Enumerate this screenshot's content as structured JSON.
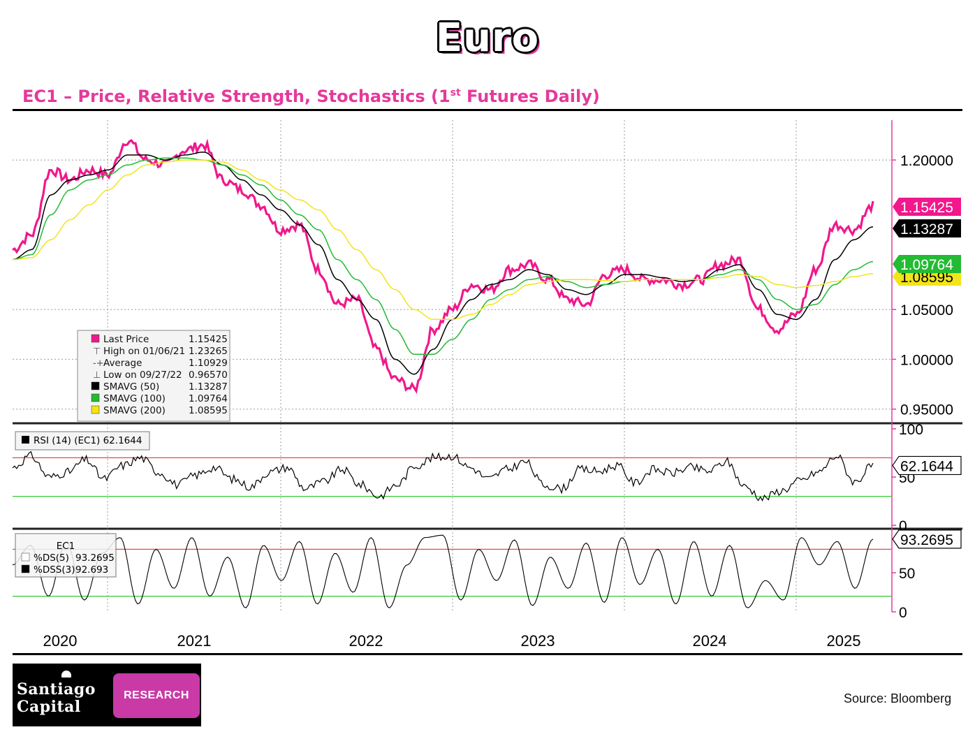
{
  "header": {
    "title": "Euro",
    "subtitle": "EC1 – Price, Relative Strength, Stochastics (1",
    "subtitle_sup": "st",
    "subtitle_end": " Futures Daily)"
  },
  "footer": {
    "source": "Source:  Bloomberg",
    "logo_line1": "Santiago",
    "logo_line2": "Capital",
    "logo_badge": "RESEARCH"
  },
  "colors": {
    "price": "#f0188c",
    "sma50": "#000000",
    "sma100": "#22bb33",
    "sma200": "#f2e41a",
    "overbought": "#e04a4a",
    "oversold": "#33cc33",
    "axis": "#e6399b"
  },
  "chart_data": [
    {
      "type": "line",
      "panel": "price",
      "years": [
        "2020",
        "2021",
        "2022",
        "2023",
        "2024",
        "2025"
      ],
      "x_dates": [
        "2019-11",
        "2020-01",
        "2020-03",
        "2020-05",
        "2020-06",
        "2020-08",
        "2020-10",
        "2020-12",
        "2021-01",
        "2021-03",
        "2021-05",
        "2021-06",
        "2021-08",
        "2021-10",
        "2021-12",
        "2022-02",
        "2022-03",
        "2022-05",
        "2022-07",
        "2022-08",
        "2022-09",
        "2022-10",
        "2022-11",
        "2022-12",
        "2023-02",
        "2023-03",
        "2023-04",
        "2023-06",
        "2023-07",
        "2023-09",
        "2023-10",
        "2023-12",
        "2024-01",
        "2024-03",
        "2024-05",
        "2024-06",
        "2024-07",
        "2024-09",
        "2024-10",
        "2024-11",
        "2025-01",
        "2025-02",
        "2025-03",
        "2025-04",
        "2025-05",
        "2025-06"
      ],
      "ylim": [
        0.94,
        1.24
      ],
      "yticks": [
        "1.20000",
        "1.05000",
        "1.00000",
        "0.95000"
      ],
      "series": [
        {
          "name": "Last Price",
          "color": "#f0188c",
          "values": [
            1.11,
            1.125,
            1.19,
            1.18,
            1.19,
            1.185,
            1.22,
            1.2,
            1.195,
            1.21,
            1.215,
            1.18,
            1.17,
            1.155,
            1.13,
            1.135,
            1.09,
            1.055,
            1.06,
            1.01,
            0.98,
            0.97,
            1.03,
            1.05,
            1.075,
            1.07,
            1.09,
            1.095,
            1.08,
            1.06,
            1.055,
            1.085,
            1.09,
            1.08,
            1.08,
            1.075,
            1.08,
            1.095,
            1.1,
            1.05,
            1.03,
            1.045,
            1.09,
            1.135,
            1.13,
            1.154
          ]
        },
        {
          "name": "SMAVG (50)",
          "color": "#000000",
          "values": [
            1.1,
            1.11,
            1.165,
            1.18,
            1.185,
            1.19,
            1.205,
            1.205,
            1.2,
            1.205,
            1.208,
            1.195,
            1.18,
            1.165,
            1.15,
            1.135,
            1.115,
            1.08,
            1.06,
            1.04,
            1.0,
            0.985,
            1.01,
            1.04,
            1.06,
            1.075,
            1.08,
            1.09,
            1.085,
            1.07,
            1.065,
            1.075,
            1.085,
            1.085,
            1.082,
            1.078,
            1.08,
            1.09,
            1.095,
            1.07,
            1.045,
            1.04,
            1.06,
            1.1,
            1.12,
            1.133
          ]
        },
        {
          "name": "SMAVG (100)",
          "color": "#22bb33",
          "values": [
            1.1,
            1.105,
            1.145,
            1.17,
            1.18,
            1.185,
            1.195,
            1.2,
            1.202,
            1.202,
            1.2,
            1.195,
            1.185,
            1.175,
            1.16,
            1.145,
            1.13,
            1.1,
            1.08,
            1.06,
            1.03,
            1.005,
            1.005,
            1.02,
            1.04,
            1.06,
            1.07,
            1.08,
            1.083,
            1.078,
            1.072,
            1.075,
            1.078,
            1.08,
            1.08,
            1.08,
            1.08,
            1.085,
            1.09,
            1.08,
            1.06,
            1.05,
            1.055,
            1.075,
            1.09,
            1.098
          ]
        },
        {
          "name": "SMAVG (200)",
          "color": "#f2e41a",
          "values": [
            1.1,
            1.102,
            1.12,
            1.14,
            1.155,
            1.17,
            1.185,
            1.195,
            1.198,
            1.2,
            1.2,
            1.198,
            1.19,
            1.18,
            1.17,
            1.16,
            1.15,
            1.13,
            1.11,
            1.09,
            1.07,
            1.05,
            1.04,
            1.04,
            1.045,
            1.055,
            1.065,
            1.075,
            1.078,
            1.08,
            1.08,
            1.079,
            1.078,
            1.08,
            1.08,
            1.08,
            1.08,
            1.082,
            1.085,
            1.083,
            1.075,
            1.072,
            1.074,
            1.078,
            1.083,
            1.086
          ]
        }
      ],
      "legend": [
        {
          "label": "Last Price",
          "value": "1.15425",
          "marker": "#f0188c"
        },
        {
          "label": "High on 01/06/21",
          "value": "1.23265",
          "marker": "high"
        },
        {
          "label": "Average",
          "value": "1.10929",
          "marker": "avg"
        },
        {
          "label": "Low on 09/27/22",
          "value": "0.96570",
          "marker": "low"
        },
        {
          "label": "SMAVG (50)",
          "value": "1.13287",
          "marker": "#000000"
        },
        {
          "label": "SMAVG (100)",
          "value": "1.09764",
          "marker": "#22bb33"
        },
        {
          "label": "SMAVG (200)",
          "value": "1.08595",
          "marker": "#f2e41a"
        }
      ],
      "last_labels": [
        {
          "value": "1.15425",
          "color": "#f0188c",
          "text_color": "#ffffff"
        },
        {
          "value": "1.13287",
          "color": "#000000",
          "text_color": "#ffffff"
        },
        {
          "value": "1.09764",
          "color": "#22bb33",
          "text_color": "#ffffff"
        },
        {
          "value": "1.08595",
          "color": "#f2e41a",
          "text_color": "#000000"
        }
      ]
    },
    {
      "type": "line",
      "panel": "rsi",
      "ylim": [
        0,
        100
      ],
      "yticks": [
        "100",
        "50",
        "0"
      ],
      "levels": [
        70,
        30
      ],
      "legend_label": "RSI (14) (EC1) 62.1644",
      "last_label": "62.1644",
      "series": [
        {
          "name": "RSI (14) (EC1)",
          "color": "#000000",
          "values": [
            60,
            72,
            50,
            55,
            68,
            48,
            62,
            70,
            55,
            42,
            52,
            60,
            48,
            40,
            55,
            60,
            38,
            45,
            58,
            42,
            30,
            42,
            62,
            70,
            72,
            60,
            48,
            58,
            66,
            42,
            38,
            58,
            56,
            62,
            44,
            58,
            54,
            60,
            56,
            66,
            40,
            28,
            36,
            46,
            55,
            72,
            45,
            62
          ]
        }
      ]
    },
    {
      "type": "line",
      "panel": "stochastics",
      "ylim": [
        0,
        100
      ],
      "yticks": [
        "50",
        "0"
      ],
      "levels": [
        80,
        20
      ],
      "legend_title": "EC1",
      "legend": [
        {
          "label": "%DS(5)",
          "value": "93.2695",
          "marker": "#ffffff"
        },
        {
          "label": "%DSS(3)",
          "value": "92.693",
          "marker": "#000000"
        }
      ],
      "last_label": "93.2695",
      "series": [
        {
          "name": "%DS(5)",
          "color": "#000000",
          "values": [
            60,
            85,
            20,
            90,
            15,
            75,
            95,
            10,
            80,
            30,
            95,
            20,
            70,
            5,
            85,
            40,
            90,
            10,
            75,
            25,
            95,
            5,
            60,
            95,
            98,
            15,
            80,
            40,
            92,
            8,
            70,
            30,
            88,
            12,
            95,
            35,
            80,
            10,
            90,
            20,
            85,
            5,
            40,
            15,
            95,
            60,
            90,
            30,
            93
          ]
        }
      ]
    }
  ]
}
